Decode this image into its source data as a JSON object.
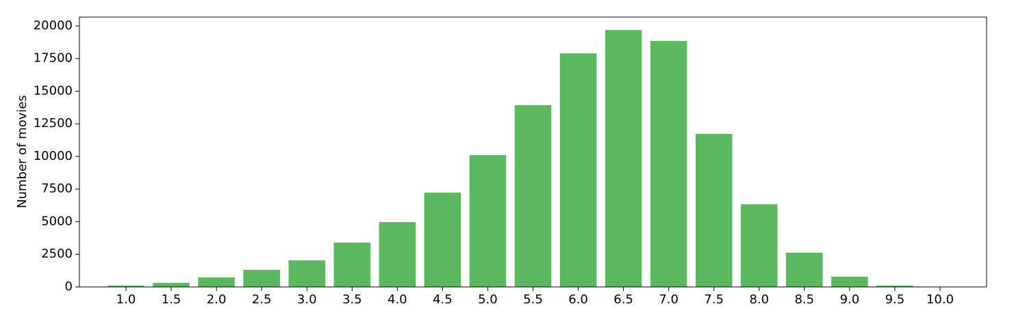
{
  "chart_data": {
    "type": "bar",
    "y_label": "Number of movies",
    "categories": [
      "1.0",
      "1.5",
      "2.0",
      "2.5",
      "3.0",
      "3.5",
      "4.0",
      "4.5",
      "5.0",
      "5.5",
      "6.0",
      "6.5",
      "7.0",
      "7.5",
      "8.0",
      "8.5",
      "9.0",
      "9.5",
      "10.0"
    ],
    "values": [
      100,
      310,
      730,
      1310,
      2040,
      3400,
      4970,
      7230,
      10100,
      13930,
      17900,
      19690,
      18850,
      11730,
      6340,
      2620,
      790,
      100,
      30
    ],
    "color": "#5cb85f",
    "ylim": [
      0,
      20680
    ],
    "yticks": [
      0,
      2500,
      5000,
      7500,
      10000,
      12500,
      15000,
      17500,
      20000
    ],
    "grid": false
  }
}
